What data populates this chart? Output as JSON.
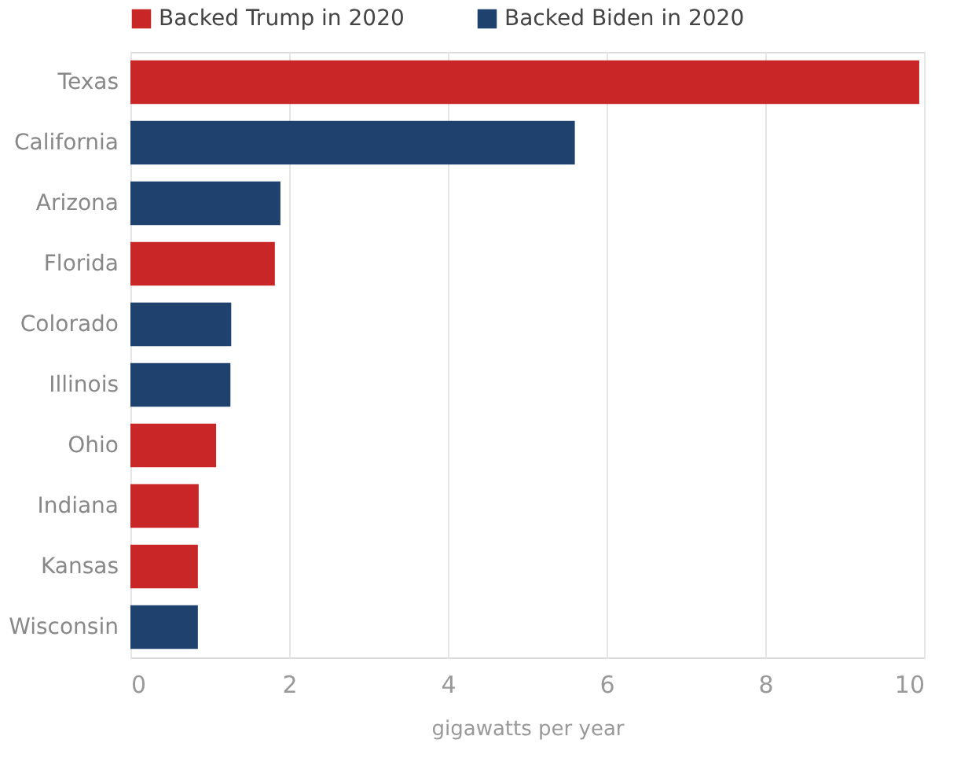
{
  "chart_data": {
    "type": "bar",
    "orientation": "horizontal",
    "xlabel": "gigawatts per year",
    "categories": [
      "Texas",
      "California",
      "Arizona",
      "Florida",
      "Colorado",
      "Illinois",
      "Ohio",
      "Indiana",
      "Kansas",
      "Wisconsin"
    ],
    "series": [
      {
        "name": "Backed Trump in 2020",
        "color": "#c92628",
        "values": [
          9.94,
          null,
          null,
          1.82,
          null,
          null,
          1.08,
          0.86,
          0.85,
          null
        ]
      },
      {
        "name": "Backed Biden in 2020",
        "color": "#1e416e",
        "values": [
          null,
          5.6,
          1.89,
          null,
          1.27,
          1.26,
          null,
          null,
          null,
          0.85
        ]
      }
    ],
    "xlim": [
      0,
      10
    ],
    "xticks": [
      0,
      2,
      4,
      6,
      8,
      10
    ],
    "grid": "x",
    "legend": "top left"
  }
}
